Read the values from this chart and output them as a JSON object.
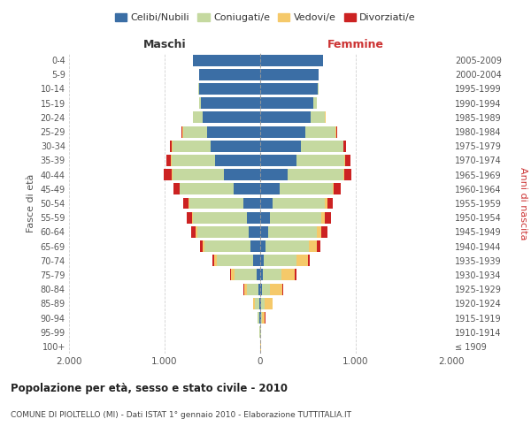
{
  "age_groups": [
    "100+",
    "95-99",
    "90-94",
    "85-89",
    "80-84",
    "75-79",
    "70-74",
    "65-69",
    "60-64",
    "55-59",
    "50-54",
    "45-49",
    "40-44",
    "35-39",
    "30-34",
    "25-29",
    "20-24",
    "15-19",
    "10-14",
    "5-9",
    "0-4"
  ],
  "birth_years": [
    "≤ 1909",
    "1910-1914",
    "1915-1919",
    "1920-1924",
    "1925-1929",
    "1930-1934",
    "1935-1939",
    "1940-1944",
    "1945-1949",
    "1950-1954",
    "1955-1959",
    "1960-1964",
    "1965-1969",
    "1970-1974",
    "1975-1979",
    "1980-1984",
    "1985-1989",
    "1990-1994",
    "1995-1999",
    "2000-2004",
    "2005-2009"
  ],
  "maschi": {
    "celibi": [
      2,
      2,
      5,
      10,
      15,
      35,
      70,
      100,
      120,
      140,
      180,
      280,
      380,
      470,
      520,
      560,
      600,
      620,
      640,
      640,
      700
    ],
    "coniugati": [
      2,
      4,
      20,
      50,
      120,
      230,
      380,
      480,
      540,
      560,
      560,
      560,
      540,
      460,
      400,
      250,
      100,
      20,
      5,
      2,
      2
    ],
    "vedovi": [
      0,
      1,
      5,
      15,
      35,
      40,
      35,
      20,
      15,
      10,
      8,
      5,
      5,
      3,
      2,
      1,
      1,
      0,
      0,
      0,
      0
    ],
    "divorziati": [
      0,
      0,
      0,
      2,
      2,
      8,
      15,
      30,
      50,
      55,
      55,
      65,
      80,
      50,
      25,
      10,
      2,
      1,
      0,
      0,
      0
    ]
  },
  "femmine": {
    "nubili": [
      2,
      2,
      5,
      10,
      15,
      25,
      40,
      60,
      80,
      100,
      130,
      200,
      290,
      380,
      430,
      470,
      530,
      560,
      600,
      610,
      660
    ],
    "coniugate": [
      2,
      4,
      15,
      40,
      90,
      200,
      340,
      450,
      510,
      540,
      550,
      560,
      580,
      500,
      440,
      320,
      150,
      30,
      10,
      3,
      2
    ],
    "vedove": [
      2,
      5,
      30,
      80,
      130,
      140,
      120,
      80,
      50,
      35,
      20,
      10,
      5,
      5,
      3,
      2,
      1,
      0,
      0,
      0,
      0
    ],
    "divorziate": [
      0,
      0,
      1,
      2,
      5,
      10,
      20,
      35,
      60,
      65,
      60,
      75,
      80,
      55,
      25,
      10,
      3,
      1,
      0,
      0,
      0
    ]
  },
  "colors": {
    "celibi": "#3b6ea5",
    "coniugati": "#c5d9a0",
    "vedovi": "#f5c96a",
    "divorziati": "#cc2222"
  },
  "xlim": 2000,
  "title": "Popolazione per età, sesso e stato civile - 2010",
  "subtitle": "COMUNE DI PIOLTELLO (MI) - Dati ISTAT 1° gennaio 2010 - Elaborazione TUTTITALIA.IT",
  "ylabel_left": "Fasce di età",
  "ylabel_right": "Anni di nascita",
  "xlabel_left": "Maschi",
  "xlabel_right": "Femmine",
  "legend_labels": [
    "Celibi/Nubili",
    "Coniugati/e",
    "Vedovi/e",
    "Divorziati/e"
  ],
  "background_color": "#ffffff",
  "grid_color": "#cccccc"
}
